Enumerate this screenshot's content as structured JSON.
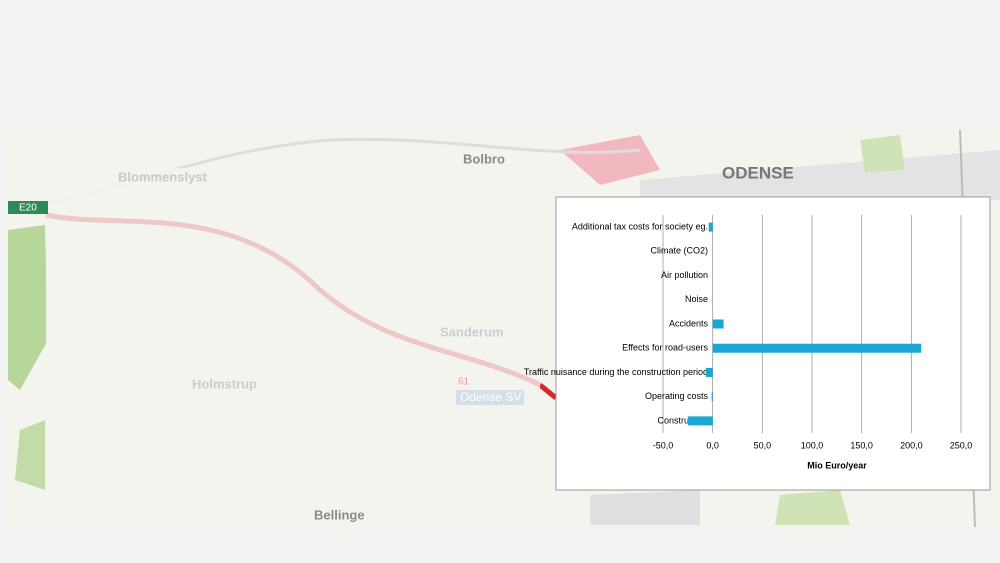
{
  "map": {
    "labels": [
      "Blommenslyst",
      "Bolbro",
      "ODENSE",
      "Sanderum",
      "Holmstrup",
      "Odense SV",
      "Bellinge",
      "E20",
      "61"
    ]
  },
  "chart_data": {
    "type": "bar",
    "orientation": "horizontal",
    "categories": [
      "Additional tax costs for society eg.",
      "Climate (CO2)",
      "Air pollution",
      "Noise",
      "Accidents",
      "Effects for road-users",
      "Traffic nuisance during the construction period",
      "Operating costs",
      "Construction"
    ],
    "values": [
      -4,
      0,
      0,
      0,
      11,
      210,
      -7,
      -1,
      -25
    ],
    "color": "#1aa7d4",
    "xlabel": "Mio Euro/year",
    "xlim": [
      -50,
      250
    ],
    "xticks": [
      {
        "value": -50,
        "label": "-50,0"
      },
      {
        "value": 0,
        "label": "0,0"
      },
      {
        "value": 50,
        "label": "50,0"
      },
      {
        "value": 100,
        "label": "100,0"
      },
      {
        "value": 150,
        "label": "150,0"
      },
      {
        "value": 200,
        "label": "200,0"
      },
      {
        "value": 250,
        "label": "250,0"
      }
    ],
    "grid": true
  }
}
